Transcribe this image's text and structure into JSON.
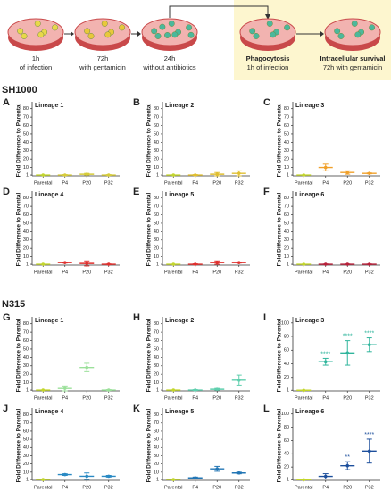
{
  "diagram": {
    "steps": [
      {
        "time": "1h",
        "desc": "of infection"
      },
      {
        "time": "72h",
        "desc": "with gentamicin"
      },
      {
        "time": "24h",
        "desc": "without antibiotics"
      },
      {
        "time": "Phagocytosis",
        "desc": "1h of infection"
      },
      {
        "time": "Intracellular survival",
        "desc": "72h with gentamicin"
      }
    ]
  },
  "sections": [
    "SH1000",
    "N315"
  ],
  "chart_data": [
    {
      "type": "errorbar",
      "label": "A",
      "title": "Lineage 1",
      "ylabel": "Fold Difference to Parental",
      "categories": [
        "Parental",
        "P4",
        "P20",
        "P32"
      ],
      "values": [
        1,
        1,
        2,
        1
      ],
      "errors": [
        0,
        0.5,
        1,
        0.5
      ],
      "colors": [
        "#c3d62c",
        "#d6cc3a",
        "#d6cc3a",
        "#d6cc3a"
      ],
      "ylim": [
        0,
        85
      ],
      "yticks": [
        1,
        10,
        20,
        30,
        40,
        50,
        60,
        70,
        80
      ]
    },
    {
      "type": "errorbar",
      "label": "B",
      "title": "Lineage 2",
      "ylabel": "Fold Difference to Parental",
      "categories": [
        "Parental",
        "P4",
        "P20",
        "P32"
      ],
      "values": [
        1,
        1,
        2,
        3
      ],
      "errors": [
        0,
        0.5,
        2,
        3
      ],
      "colors": [
        "#c3d62c",
        "#e0bf30",
        "#e0bf30",
        "#e0bf30"
      ],
      "ylim": [
        0,
        85
      ],
      "yticks": [
        1,
        10,
        20,
        30,
        40,
        50,
        60,
        70,
        80
      ]
    },
    {
      "type": "errorbar",
      "label": "C",
      "title": "Lineage 3",
      "ylabel": "Fold Difference to Parental",
      "categories": [
        "Parental",
        "P4",
        "P20",
        "P32"
      ],
      "values": [
        1,
        10,
        4,
        3
      ],
      "errors": [
        0,
        4,
        2,
        0.5
      ],
      "colors": [
        "#c3d62c",
        "#f0a02a",
        "#f0a02a",
        "#f0a02a"
      ],
      "ylim": [
        0,
        85
      ],
      "yticks": [
        1,
        10,
        20,
        30,
        40,
        50,
        60,
        70,
        80
      ]
    },
    {
      "type": "errorbar",
      "label": "D",
      "title": "Lineage 4",
      "ylabel": "Fold Difference to Parental",
      "categories": [
        "Parental",
        "P4",
        "P20",
        "P32"
      ],
      "values": [
        1,
        3,
        2,
        1
      ],
      "errors": [
        0,
        0.5,
        3,
        0.3
      ],
      "colors": [
        "#c3d62c",
        "#e0302e",
        "#e0302e",
        "#e0302e"
      ],
      "ylim": [
        0,
        85
      ],
      "yticks": [
        1,
        10,
        20,
        30,
        40,
        50,
        60,
        70,
        80
      ]
    },
    {
      "type": "errorbar",
      "label": "E",
      "title": "Lineage 5",
      "ylabel": "Fold Difference to Parental",
      "categories": [
        "Parental",
        "P4",
        "P20",
        "P32"
      ],
      "values": [
        1,
        1,
        3,
        3
      ],
      "errors": [
        0,
        0.5,
        2,
        0.5
      ],
      "colors": [
        "#c3d62c",
        "#e0302e",
        "#e0302e",
        "#e0302e"
      ],
      "ylim": [
        0,
        85
      ],
      "yticks": [
        1,
        10,
        20,
        30,
        40,
        50,
        60,
        70,
        80
      ]
    },
    {
      "type": "errorbar",
      "label": "F",
      "title": "Lineage 6",
      "ylabel": "Fold Difference to Parental",
      "categories": [
        "Parental",
        "P4",
        "P20",
        "P32"
      ],
      "values": [
        1,
        1,
        1,
        1
      ],
      "errors": [
        0,
        0.3,
        0.3,
        0.3
      ],
      "colors": [
        "#c3d62c",
        "#b8203a",
        "#b8203a",
        "#b8203a"
      ],
      "ylim": [
        0,
        85
      ],
      "yticks": [
        1,
        10,
        20,
        30,
        40,
        50,
        60,
        70,
        80
      ]
    },
    {
      "type": "errorbar",
      "label": "G",
      "title": "Lineage 1",
      "ylabel": "Fold Difference to Parental",
      "categories": [
        "Parental",
        "P4",
        "P20",
        "P32"
      ],
      "values": [
        1,
        3,
        28,
        1
      ],
      "errors": [
        0,
        3,
        5,
        0.5
      ],
      "colors": [
        "#c3d62c",
        "#9be09a",
        "#9be09a",
        "#9be09a"
      ],
      "ylim": [
        0,
        85
      ],
      "yticks": [
        1,
        10,
        20,
        30,
        40,
        50,
        60,
        70,
        80
      ]
    },
    {
      "type": "errorbar",
      "label": "H",
      "title": "Lineage 2",
      "ylabel": "Fold Difference to Parental",
      "categories": [
        "Parental",
        "P4",
        "P20",
        "P32"
      ],
      "values": [
        1,
        1,
        2,
        13
      ],
      "errors": [
        0,
        0.5,
        1,
        6
      ],
      "colors": [
        "#c3d62c",
        "#5fcfae",
        "#5fcfae",
        "#5fcfae"
      ],
      "ylim": [
        0,
        85
      ],
      "yticks": [
        1,
        10,
        20,
        30,
        40,
        50,
        60,
        70,
        80
      ]
    },
    {
      "type": "errorbar",
      "label": "I",
      "title": "Lineage 3",
      "ylabel": "Fold Difference to Parental",
      "categories": [
        "Parental",
        "P4",
        "P20",
        "P32"
      ],
      "values": [
        1,
        43,
        56,
        68
      ],
      "errors": [
        0,
        5,
        18,
        10
      ],
      "annotations": [
        null,
        "****",
        "****",
        "****"
      ],
      "colors": [
        "#c3d62c",
        "#2fb59c",
        "#2fb59c",
        "#2fb59c"
      ],
      "ylim": [
        0,
        105
      ],
      "yticks": [
        1,
        20,
        40,
        60,
        80,
        100
      ]
    },
    {
      "type": "errorbar",
      "label": "J",
      "title": "Lineage 4",
      "ylabel": "Fold Difference to Parental",
      "categories": [
        "Parental",
        "P4",
        "P20",
        "P32"
      ],
      "values": [
        1,
        7,
        5,
        5
      ],
      "errors": [
        0,
        1,
        4,
        1
      ],
      "colors": [
        "#c3d62c",
        "#2a8ac4",
        "#2a8ac4",
        "#2a8ac4"
      ],
      "ylim": [
        0,
        85
      ],
      "yticks": [
        1,
        10,
        20,
        30,
        40,
        50,
        60,
        70,
        80
      ]
    },
    {
      "type": "errorbar",
      "label": "K",
      "title": "Lineage 5",
      "ylabel": "Fold Difference to Parental",
      "categories": [
        "Parental",
        "P4",
        "P20",
        "P32"
      ],
      "values": [
        1,
        3,
        14,
        9
      ],
      "errors": [
        0,
        1,
        3,
        1
      ],
      "colors": [
        "#c3d62c",
        "#2276b5",
        "#2276b5",
        "#2276b5"
      ],
      "ylim": [
        0,
        85
      ],
      "yticks": [
        1,
        10,
        20,
        30,
        40,
        50,
        60,
        70,
        80
      ]
    },
    {
      "type": "errorbar",
      "label": "L",
      "title": "Lineage 6",
      "ylabel": "Fold Difference to Parental",
      "categories": [
        "Parental",
        "P4",
        "P20",
        "P32"
      ],
      "values": [
        1,
        6,
        22,
        44
      ],
      "errors": [
        0,
        4,
        6,
        18
      ],
      "annotations": [
        null,
        null,
        "**",
        "****"
      ],
      "colors": [
        "#c3d62c",
        "#1d4f9c",
        "#1d4f9c",
        "#1d4f9c"
      ],
      "ylim": [
        0,
        105
      ],
      "yticks": [
        1,
        20,
        40,
        60,
        80,
        100
      ]
    }
  ]
}
